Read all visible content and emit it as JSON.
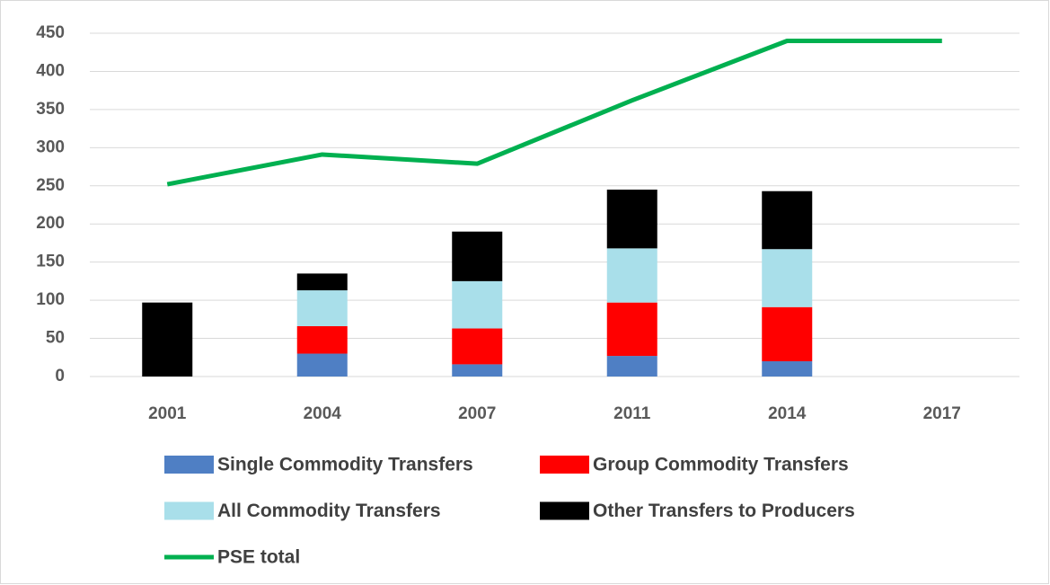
{
  "chart_data": {
    "type": "bar",
    "stacked": true,
    "categories": [
      "2001",
      "2004",
      "2007",
      "2011",
      "2014",
      "2017"
    ],
    "series": [
      {
        "name": "Single Commodity Transfers",
        "type": "bar",
        "color": "#4f7fc4",
        "values": [
          null,
          30,
          16,
          27,
          20,
          null
        ]
      },
      {
        "name": "Group Commodity Transfers",
        "type": "bar",
        "color": "#ff0000",
        "values": [
          null,
          36,
          47,
          70,
          71,
          null
        ]
      },
      {
        "name": "All Commodity Transfers",
        "type": "bar",
        "color": "#a9dfea",
        "values": [
          null,
          47,
          62,
          71,
          76,
          null
        ]
      },
      {
        "name": "Other Transfers to Producers",
        "type": "bar",
        "color": "#000000",
        "values": [
          97,
          22,
          65,
          77,
          76,
          null
        ]
      },
      {
        "name": "PSE total",
        "type": "line",
        "color": "#00b050",
        "values": [
          252,
          291,
          279,
          362,
          440,
          440
        ]
      }
    ],
    "ylim": [
      0,
      450
    ],
    "yticks": [
      0,
      50,
      100,
      150,
      200,
      250,
      300,
      350,
      400,
      450
    ],
    "grid": true
  }
}
